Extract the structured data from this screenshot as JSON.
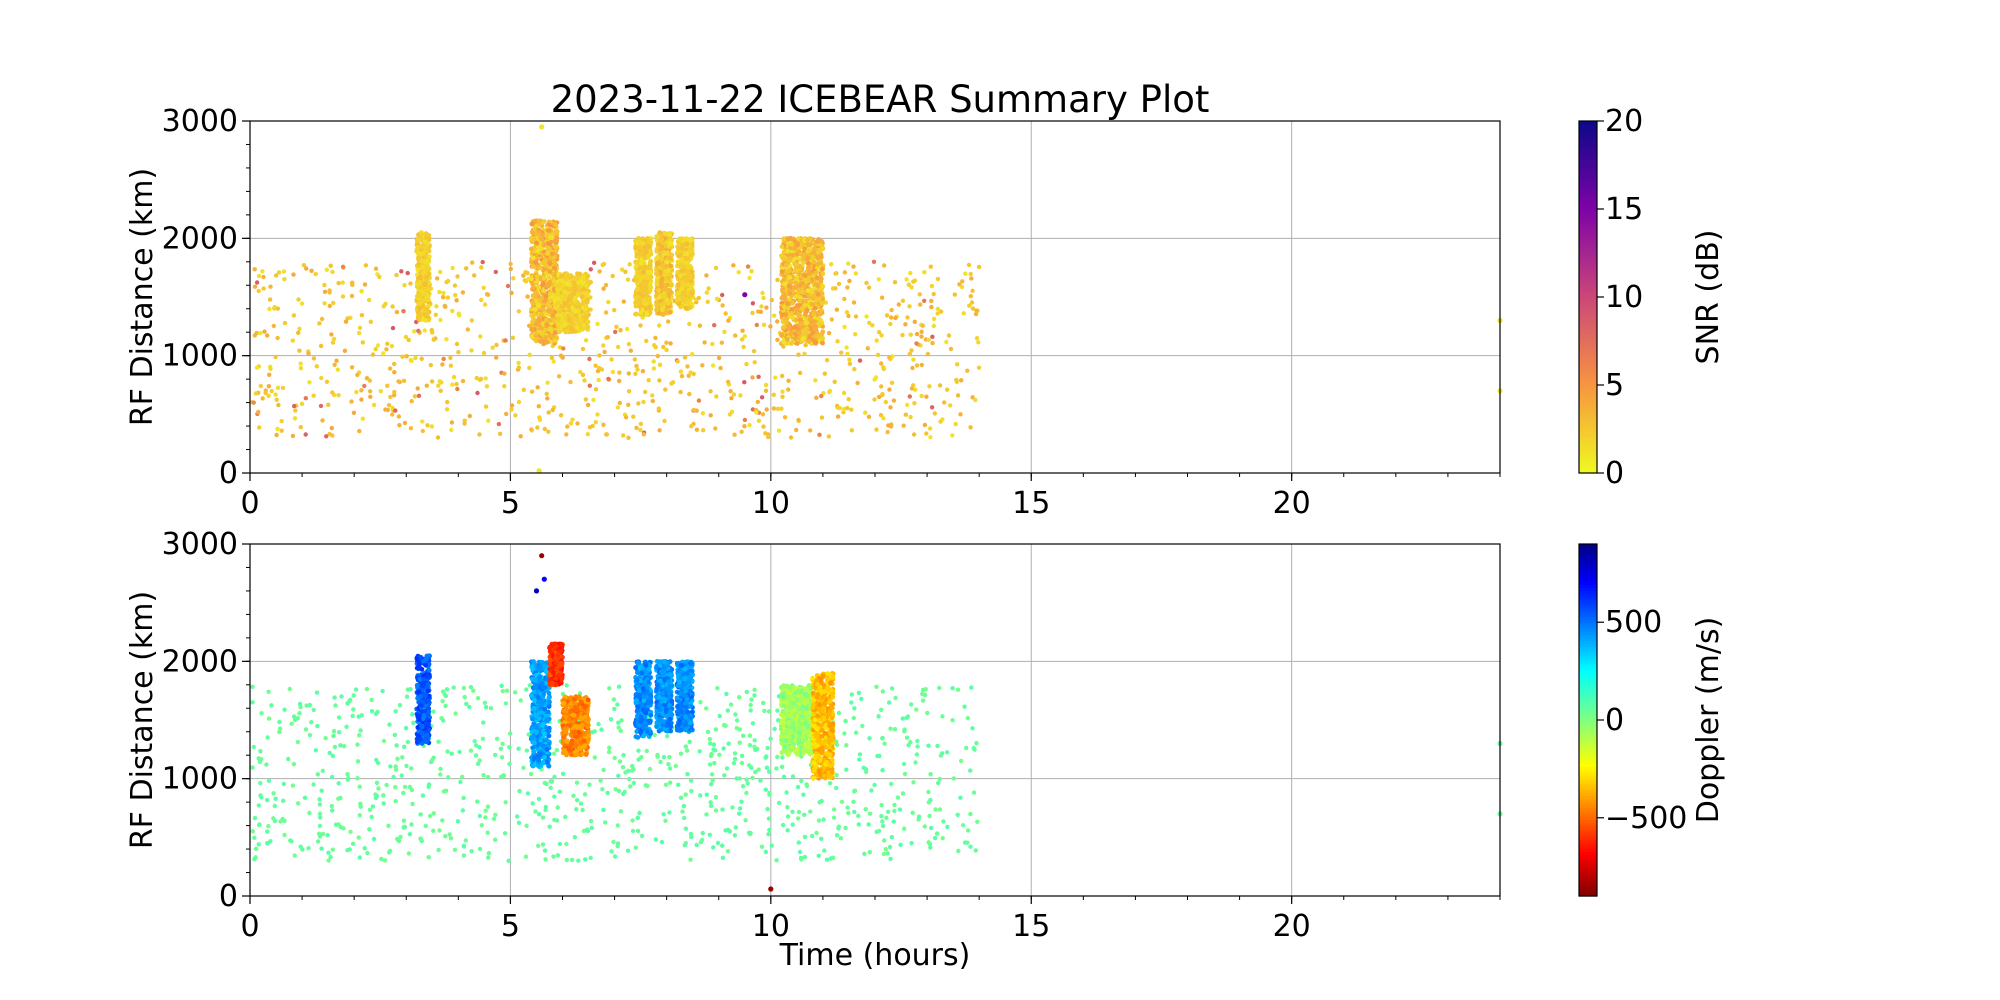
{
  "figure": {
    "title": "2023-11-22 ICEBEAR Summary Plot"
  },
  "chart_data": [
    {
      "type": "scatter",
      "panel": "top",
      "title": "2023-11-22 ICEBEAR Summary Plot",
      "xlabel": "",
      "ylabel": "RF Distance (km)",
      "xlim": [
        0,
        24
      ],
      "ylim": [
        0,
        3000
      ],
      "xticks": [
        0,
        5,
        10,
        15,
        20
      ],
      "yticks": [
        0,
        1000,
        2000,
        3000
      ],
      "grid": true,
      "color_variable": "SNR (dB)",
      "colorbar": {
        "label": "SNR (dB)",
        "range": [
          0,
          20
        ],
        "ticks": [
          0,
          5,
          10,
          15,
          20
        ],
        "colormap": "plasma_r"
      },
      "background_scatter": {
        "t_range": [
          0,
          14
        ],
        "range_km": [
          300,
          1800
        ],
        "snr_db_typical": [
          1,
          4
        ]
      },
      "echo_clusters": [
        {
          "t_hours": [
            3.2,
            3.45
          ],
          "range_km": [
            1300,
            2050
          ],
          "snr_db": [
            1,
            3
          ]
        },
        {
          "t_hours": [
            5.4,
            5.9
          ],
          "range_km": [
            1100,
            2150
          ],
          "snr_db": [
            1,
            5
          ]
        },
        {
          "t_hours": [
            5.9,
            6.5
          ],
          "range_km": [
            1200,
            1700
          ],
          "snr_db": [
            1,
            3
          ]
        },
        {
          "t_hours": [
            7.4,
            7.7
          ],
          "range_km": [
            1350,
            2000
          ],
          "snr_db": [
            1,
            3
          ]
        },
        {
          "t_hours": [
            7.8,
            8.1
          ],
          "range_km": [
            1350,
            2050
          ],
          "snr_db": [
            1,
            4
          ]
        },
        {
          "t_hours": [
            8.2,
            8.5
          ],
          "range_km": [
            1400,
            2000
          ],
          "snr_db": [
            1,
            3
          ]
        },
        {
          "t_hours": [
            10.2,
            11.0
          ],
          "range_km": [
            1100,
            2000
          ],
          "snr_db": [
            1,
            5
          ]
        }
      ],
      "notable_points": [
        {
          "t_hours": 5.6,
          "range_km": 2950,
          "snr_db": 1
        },
        {
          "t_hours": 5.55,
          "range_km": 20,
          "snr_db": 1
        },
        {
          "t_hours": 9.5,
          "range_km": 1520,
          "snr_db": 15
        },
        {
          "t_hours": 24,
          "range_km": 1300,
          "snr_db": 1
        },
        {
          "t_hours": 24,
          "range_km": 700,
          "snr_db": 1
        }
      ]
    },
    {
      "type": "scatter",
      "panel": "bottom",
      "title": "",
      "xlabel": "Time (hours)",
      "ylabel": "RF Distance (km)",
      "xlim": [
        0,
        24
      ],
      "ylim": [
        0,
        3000
      ],
      "xticks": [
        0,
        5,
        10,
        15,
        20
      ],
      "yticks": [
        0,
        1000,
        2000,
        3000
      ],
      "grid": true,
      "color_variable": "Doppler (m/s)",
      "colorbar": {
        "label": "Doppler (m/s)",
        "range": [
          -900,
          900
        ],
        "ticks": [
          -500,
          0,
          500
        ],
        "colormap": "jet_r"
      },
      "background_scatter": {
        "t_range": [
          0,
          14
        ],
        "range_km": [
          300,
          1800
        ],
        "doppler_ms_typical": 50
      },
      "echo_clusters": [
        {
          "t_hours": [
            3.2,
            3.45
          ],
          "range_km": [
            1300,
            2050
          ],
          "doppler_ms": 550
        },
        {
          "t_hours": [
            5.4,
            5.75
          ],
          "range_km": [
            1100,
            2000
          ],
          "doppler_ms": 420
        },
        {
          "t_hours": [
            5.75,
            6.0
          ],
          "range_km": [
            1800,
            2150
          ],
          "doppler_ms": -600
        },
        {
          "t_hours": [
            6.0,
            6.5
          ],
          "range_km": [
            1200,
            1700
          ],
          "doppler_ms": -450
        },
        {
          "t_hours": [
            7.4,
            7.7
          ],
          "range_km": [
            1350,
            2000
          ],
          "doppler_ms": 450
        },
        {
          "t_hours": [
            7.8,
            8.1
          ],
          "range_km": [
            1400,
            2000
          ],
          "doppler_ms": 450
        },
        {
          "t_hours": [
            8.2,
            8.5
          ],
          "range_km": [
            1400,
            2000
          ],
          "doppler_ms": 450
        },
        {
          "t_hours": [
            10.2,
            10.8
          ],
          "range_km": [
            1200,
            1800
          ],
          "doppler_ms": -50
        },
        {
          "t_hours": [
            10.8,
            11.2
          ],
          "range_km": [
            1000,
            1900
          ],
          "doppler_ms": -350
        }
      ],
      "notable_points": [
        {
          "t_hours": 5.6,
          "range_km": 2900,
          "doppler_ms": -850
        },
        {
          "t_hours": 5.5,
          "range_km": 2600,
          "doppler_ms": 800
        },
        {
          "t_hours": 5.65,
          "range_km": 2700,
          "doppler_ms": 700
        },
        {
          "t_hours": 10.0,
          "range_km": 60,
          "doppler_ms": -850
        },
        {
          "t_hours": 24,
          "range_km": 1300,
          "doppler_ms": 50
        },
        {
          "t_hours": 24,
          "range_km": 700,
          "doppler_ms": 50
        }
      ]
    }
  ]
}
